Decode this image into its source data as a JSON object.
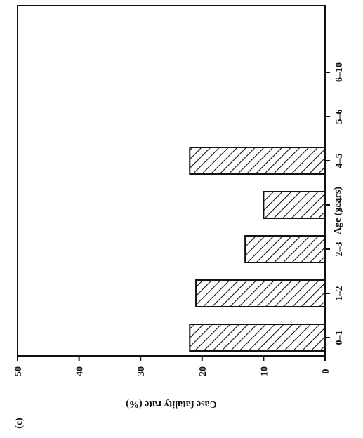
{
  "panel_label": "(c)",
  "chart_data": {
    "type": "bar",
    "orientation": "rotated-90-clockwise",
    "categories": [
      "0–1",
      "1–2",
      "2–3",
      "3–4",
      "4–5",
      "5–6",
      "6–10"
    ],
    "values": [
      22,
      21,
      13,
      10,
      22,
      null,
      null
    ],
    "xlabel": "Age (years)",
    "ylabel": "Case fatality rate (%)",
    "ylim": [
      0,
      50
    ],
    "yticks": [
      0,
      10,
      20,
      30,
      40,
      50
    ],
    "ytick_labels": [
      "0",
      "10",
      "20",
      "30",
      "40",
      "50"
    ],
    "bar_fill": "diagonal-hatch",
    "grid": false,
    "legend": "none"
  }
}
